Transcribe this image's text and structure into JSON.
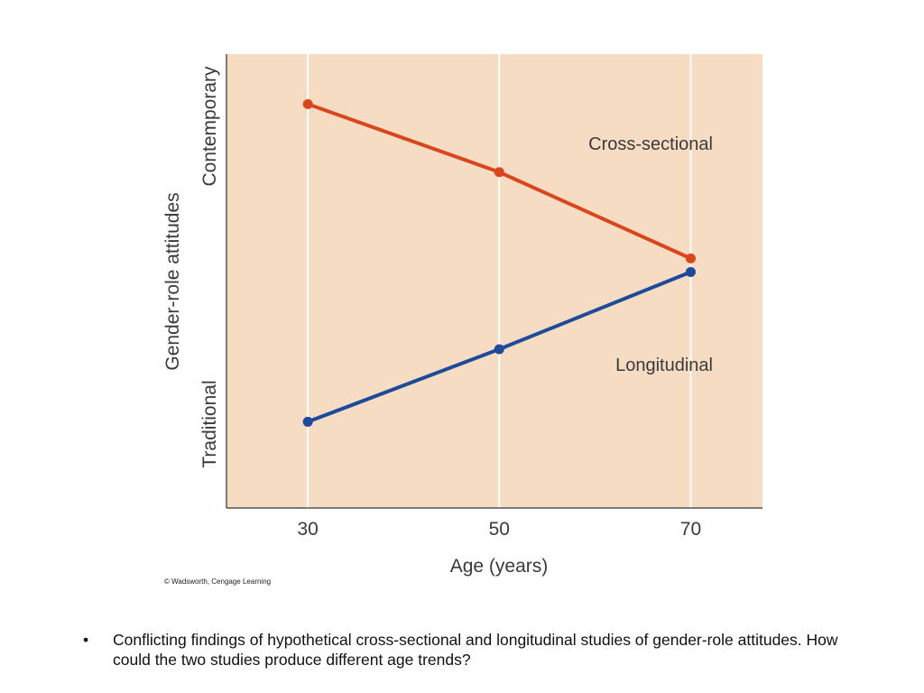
{
  "chart_data": {
    "type": "line",
    "x": [
      30,
      50,
      70
    ],
    "xticks": [
      "30",
      "50",
      "70"
    ],
    "xlabel": "Age (years)",
    "ylabel": "Gender-role attitudes",
    "ylabel_low": "Traditional",
    "ylabel_high": "Contemporary",
    "ylim": [
      0,
      10
    ],
    "xlim": [
      21.5,
      77.5
    ],
    "grid": "vertical",
    "series": [
      {
        "name": "Cross-sectional",
        "values": [
          8.9,
          7.4,
          5.5
        ],
        "color": "#d9461c"
      },
      {
        "name": "Longitudinal",
        "values": [
          1.9,
          3.5,
          5.2
        ],
        "color": "#1b4b9a"
      }
    ],
    "background_color": "#f7dcc4",
    "gridline_color": "#ffffff"
  },
  "credit": "© Wadsworth, Cengage Learning",
  "caption": {
    "bullet": "•",
    "text": "Conflicting findings of hypothetical cross-sectional and longitudinal studies of gender-role attitudes.  How could the two studies produce different age trends?"
  }
}
